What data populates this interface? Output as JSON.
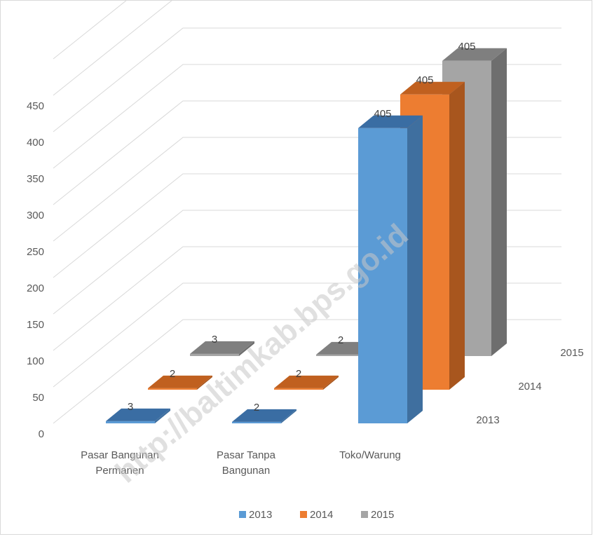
{
  "chart_data": {
    "type": "bar",
    "three_d": true,
    "categories": [
      "Pasar Bangunan Permanen",
      "Pasar Tanpa Bangunan",
      "Toko/Warung"
    ],
    "category_lines": [
      [
        "Pasar Bangunan",
        "Permanen"
      ],
      [
        "Pasar Tanpa",
        "Bangunan"
      ],
      [
        "Toko/Warung"
      ]
    ],
    "series": [
      {
        "name": "2013",
        "values": [
          3,
          2,
          405
        ],
        "color": "#5b9bd5",
        "side": "#3f6f9f",
        "top": "#3a6da3"
      },
      {
        "name": "2014",
        "values": [
          2,
          2,
          405
        ],
        "color": "#ed7d31",
        "side": "#a8561e",
        "top": "#c0601f"
      },
      {
        "name": "2015",
        "values": [
          3,
          2,
          405
        ],
        "color": "#a5a5a5",
        "side": "#6e6e6e",
        "top": "#7f7f7f"
      }
    ],
    "y_ticks": [
      "0",
      "50",
      "100",
      "150",
      "200",
      "250",
      "300",
      "350",
      "400",
      "450"
    ],
    "ylim": [
      0,
      450
    ],
    "legend_position": "bottom",
    "grid": true
  },
  "watermark": "http://baltimkab.bps.go.id"
}
